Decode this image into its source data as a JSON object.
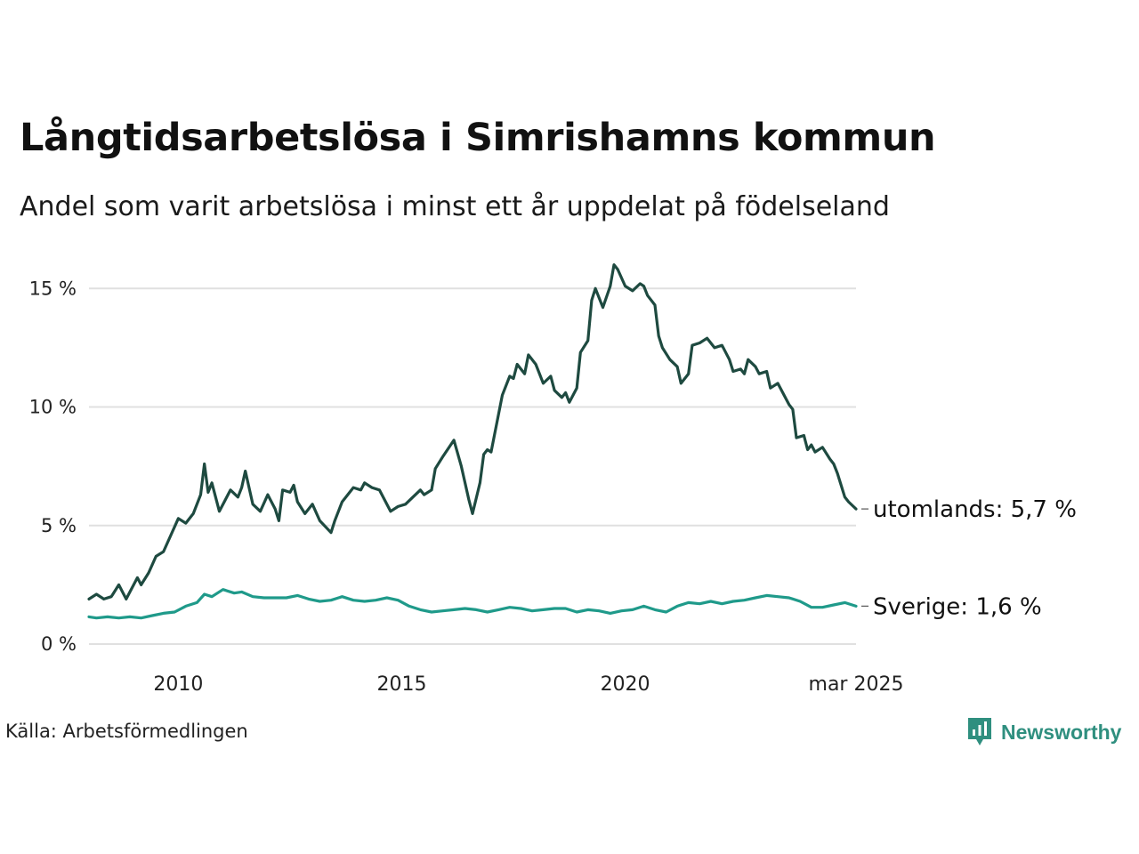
{
  "header": {
    "title": "Långtidsarbetslösa i Simrishamns kommun",
    "subtitle": "Andel som varit arbetslösa i minst ett år uppdelat på födelseland"
  },
  "footer": {
    "source": "Källa: Arbetsförmedlingen",
    "brand": "Newsworthy"
  },
  "colors": {
    "utomlands": "#1e4a40",
    "sverige": "#1f9a8a",
    "grid": "#e0e0e0",
    "brand": "#2f8f7f"
  },
  "chart_data": {
    "type": "line",
    "title": "Långtidsarbetslösa i Simrishamns kommun",
    "subtitle": "Andel som varit arbetslösa i minst ett år uppdelat på födelseland",
    "xlabel": "",
    "ylabel": "",
    "x_range": [
      "2008-01",
      "2025-03"
    ],
    "ylim": [
      0,
      16
    ],
    "y_ticks": [
      {
        "value": 0,
        "label": "0 %"
      },
      {
        "value": 5,
        "label": "5 %"
      },
      {
        "value": 10,
        "label": "10 %"
      },
      {
        "value": 15,
        "label": "15 %"
      }
    ],
    "x_ticks": [
      {
        "value": "2010-01",
        "label": "2010"
      },
      {
        "value": "2015-01",
        "label": "2015"
      },
      {
        "value": "2020-01",
        "label": "2020"
      },
      {
        "value": "2025-03",
        "label": "mar 2025"
      }
    ],
    "grid": "horizontal",
    "series": [
      {
        "key": "utomlands",
        "end_label": "utomlands: 5,7 %",
        "points": [
          [
            "2008-01",
            1.9
          ],
          [
            "2008-03",
            2.1
          ],
          [
            "2008-05",
            1.9
          ],
          [
            "2008-07",
            2.0
          ],
          [
            "2008-09",
            2.5
          ],
          [
            "2008-11",
            1.9
          ],
          [
            "2009-02",
            2.8
          ],
          [
            "2009-03",
            2.5
          ],
          [
            "2009-05",
            3.0
          ],
          [
            "2009-07",
            3.7
          ],
          [
            "2009-09",
            3.9
          ],
          [
            "2009-11",
            4.6
          ],
          [
            "2010-01",
            5.3
          ],
          [
            "2010-03",
            5.1
          ],
          [
            "2010-05",
            5.5
          ],
          [
            "2010-07",
            6.3
          ],
          [
            "2010-08",
            7.6
          ],
          [
            "2010-09",
            6.4
          ],
          [
            "2010-10",
            6.8
          ],
          [
            "2010-12",
            5.6
          ],
          [
            "2011-03",
            6.5
          ],
          [
            "2011-05",
            6.2
          ],
          [
            "2011-06",
            6.6
          ],
          [
            "2011-07",
            7.3
          ],
          [
            "2011-09",
            5.9
          ],
          [
            "2011-11",
            5.6
          ],
          [
            "2012-01",
            6.3
          ],
          [
            "2012-03",
            5.7
          ],
          [
            "2012-04",
            5.2
          ],
          [
            "2012-05",
            6.5
          ],
          [
            "2012-07",
            6.4
          ],
          [
            "2012-08",
            6.7
          ],
          [
            "2012-09",
            6.0
          ],
          [
            "2012-11",
            5.5
          ],
          [
            "2013-01",
            5.9
          ],
          [
            "2013-03",
            5.2
          ],
          [
            "2013-06",
            4.7
          ],
          [
            "2013-07",
            5.2
          ],
          [
            "2013-09",
            6.0
          ],
          [
            "2013-12",
            6.6
          ],
          [
            "2014-02",
            6.5
          ],
          [
            "2014-03",
            6.8
          ],
          [
            "2014-05",
            6.6
          ],
          [
            "2014-07",
            6.5
          ],
          [
            "2014-10",
            5.6
          ],
          [
            "2014-12",
            5.8
          ],
          [
            "2015-02",
            5.9
          ],
          [
            "2015-04",
            6.2
          ],
          [
            "2015-06",
            6.5
          ],
          [
            "2015-07",
            6.3
          ],
          [
            "2015-09",
            6.5
          ],
          [
            "2015-10",
            7.4
          ],
          [
            "2015-12",
            7.9
          ],
          [
            "2016-03",
            8.6
          ],
          [
            "2016-05",
            7.5
          ],
          [
            "2016-07",
            6.1
          ],
          [
            "2016-08",
            5.5
          ],
          [
            "2016-10",
            6.8
          ],
          [
            "2016-11",
            8.0
          ],
          [
            "2016-12",
            8.2
          ],
          [
            "2017-01",
            8.1
          ],
          [
            "2017-04",
            10.5
          ],
          [
            "2017-06",
            11.3
          ],
          [
            "2017-07",
            11.2
          ],
          [
            "2017-08",
            11.8
          ],
          [
            "2017-10",
            11.4
          ],
          [
            "2017-11",
            12.2
          ],
          [
            "2018-01",
            11.8
          ],
          [
            "2018-03",
            11.0
          ],
          [
            "2018-05",
            11.3
          ],
          [
            "2018-06",
            10.7
          ],
          [
            "2018-08",
            10.4
          ],
          [
            "2018-09",
            10.6
          ],
          [
            "2018-10",
            10.2
          ],
          [
            "2018-12",
            10.8
          ],
          [
            "2019-01",
            12.3
          ],
          [
            "2019-03",
            12.8
          ],
          [
            "2019-04",
            14.5
          ],
          [
            "2019-05",
            15.0
          ],
          [
            "2019-07",
            14.2
          ],
          [
            "2019-09",
            15.1
          ],
          [
            "2019-10",
            16.0
          ],
          [
            "2019-11",
            15.8
          ],
          [
            "2020-01",
            15.1
          ],
          [
            "2020-03",
            14.9
          ],
          [
            "2020-05",
            15.2
          ],
          [
            "2020-06",
            15.1
          ],
          [
            "2020-07",
            14.7
          ],
          [
            "2020-09",
            14.3
          ],
          [
            "2020-10",
            13.0
          ],
          [
            "2020-11",
            12.5
          ],
          [
            "2021-01",
            12.0
          ],
          [
            "2021-03",
            11.7
          ],
          [
            "2021-04",
            11.0
          ],
          [
            "2021-06",
            11.4
          ],
          [
            "2021-07",
            12.6
          ],
          [
            "2021-09",
            12.7
          ],
          [
            "2021-11",
            12.9
          ],
          [
            "2022-01",
            12.5
          ],
          [
            "2022-03",
            12.6
          ],
          [
            "2022-05",
            12.0
          ],
          [
            "2022-06",
            11.5
          ],
          [
            "2022-08",
            11.6
          ],
          [
            "2022-09",
            11.4
          ],
          [
            "2022-10",
            12.0
          ],
          [
            "2022-12",
            11.7
          ],
          [
            "2023-01",
            11.4
          ],
          [
            "2023-03",
            11.5
          ],
          [
            "2023-04",
            10.8
          ],
          [
            "2023-06",
            11.0
          ],
          [
            "2023-09",
            10.1
          ],
          [
            "2023-10",
            9.9
          ],
          [
            "2023-11",
            8.7
          ],
          [
            "2024-01",
            8.8
          ],
          [
            "2024-02",
            8.2
          ],
          [
            "2024-03",
            8.4
          ],
          [
            "2024-04",
            8.1
          ],
          [
            "2024-06",
            8.3
          ],
          [
            "2024-08",
            7.8
          ],
          [
            "2024-09",
            7.6
          ],
          [
            "2024-10",
            7.2
          ],
          [
            "2024-12",
            6.2
          ],
          [
            "2025-01",
            6.0
          ],
          [
            "2025-03",
            5.7
          ]
        ]
      },
      {
        "key": "sverige",
        "end_label": "Sverige: 1,6 %",
        "points": [
          [
            "2008-01",
            1.15
          ],
          [
            "2008-03",
            1.1
          ],
          [
            "2008-06",
            1.15
          ],
          [
            "2008-09",
            1.1
          ],
          [
            "2008-12",
            1.15
          ],
          [
            "2009-03",
            1.1
          ],
          [
            "2009-06",
            1.2
          ],
          [
            "2009-09",
            1.3
          ],
          [
            "2009-12",
            1.35
          ],
          [
            "2010-03",
            1.6
          ],
          [
            "2010-06",
            1.75
          ],
          [
            "2010-08",
            2.1
          ],
          [
            "2010-10",
            2.0
          ],
          [
            "2011-01",
            2.3
          ],
          [
            "2011-04",
            2.15
          ],
          [
            "2011-06",
            2.2
          ],
          [
            "2011-09",
            2.0
          ],
          [
            "2011-12",
            1.95
          ],
          [
            "2012-03",
            1.95
          ],
          [
            "2012-06",
            1.95
          ],
          [
            "2012-09",
            2.05
          ],
          [
            "2012-12",
            1.9
          ],
          [
            "2013-03",
            1.8
          ],
          [
            "2013-06",
            1.85
          ],
          [
            "2013-09",
            2.0
          ],
          [
            "2013-12",
            1.85
          ],
          [
            "2014-03",
            1.8
          ],
          [
            "2014-06",
            1.85
          ],
          [
            "2014-09",
            1.95
          ],
          [
            "2014-12",
            1.85
          ],
          [
            "2015-03",
            1.6
          ],
          [
            "2015-06",
            1.45
          ],
          [
            "2015-09",
            1.35
          ],
          [
            "2015-12",
            1.4
          ],
          [
            "2016-03",
            1.45
          ],
          [
            "2016-06",
            1.5
          ],
          [
            "2016-09",
            1.45
          ],
          [
            "2016-12",
            1.35
          ],
          [
            "2017-03",
            1.45
          ],
          [
            "2017-06",
            1.55
          ],
          [
            "2017-09",
            1.5
          ],
          [
            "2017-12",
            1.4
          ],
          [
            "2018-03",
            1.45
          ],
          [
            "2018-06",
            1.5
          ],
          [
            "2018-09",
            1.5
          ],
          [
            "2018-12",
            1.35
          ],
          [
            "2019-03",
            1.45
          ],
          [
            "2019-06",
            1.4
          ],
          [
            "2019-09",
            1.3
          ],
          [
            "2019-12",
            1.4
          ],
          [
            "2020-03",
            1.45
          ],
          [
            "2020-06",
            1.6
          ],
          [
            "2020-09",
            1.45
          ],
          [
            "2020-12",
            1.35
          ],
          [
            "2021-03",
            1.6
          ],
          [
            "2021-06",
            1.75
          ],
          [
            "2021-09",
            1.7
          ],
          [
            "2021-12",
            1.8
          ],
          [
            "2022-03",
            1.7
          ],
          [
            "2022-06",
            1.8
          ],
          [
            "2022-09",
            1.85
          ],
          [
            "2022-12",
            1.95
          ],
          [
            "2023-03",
            2.05
          ],
          [
            "2023-06",
            2.0
          ],
          [
            "2023-09",
            1.95
          ],
          [
            "2023-12",
            1.8
          ],
          [
            "2024-03",
            1.55
          ],
          [
            "2024-06",
            1.55
          ],
          [
            "2024-09",
            1.65
          ],
          [
            "2024-12",
            1.75
          ],
          [
            "2025-03",
            1.6
          ]
        ]
      }
    ]
  }
}
